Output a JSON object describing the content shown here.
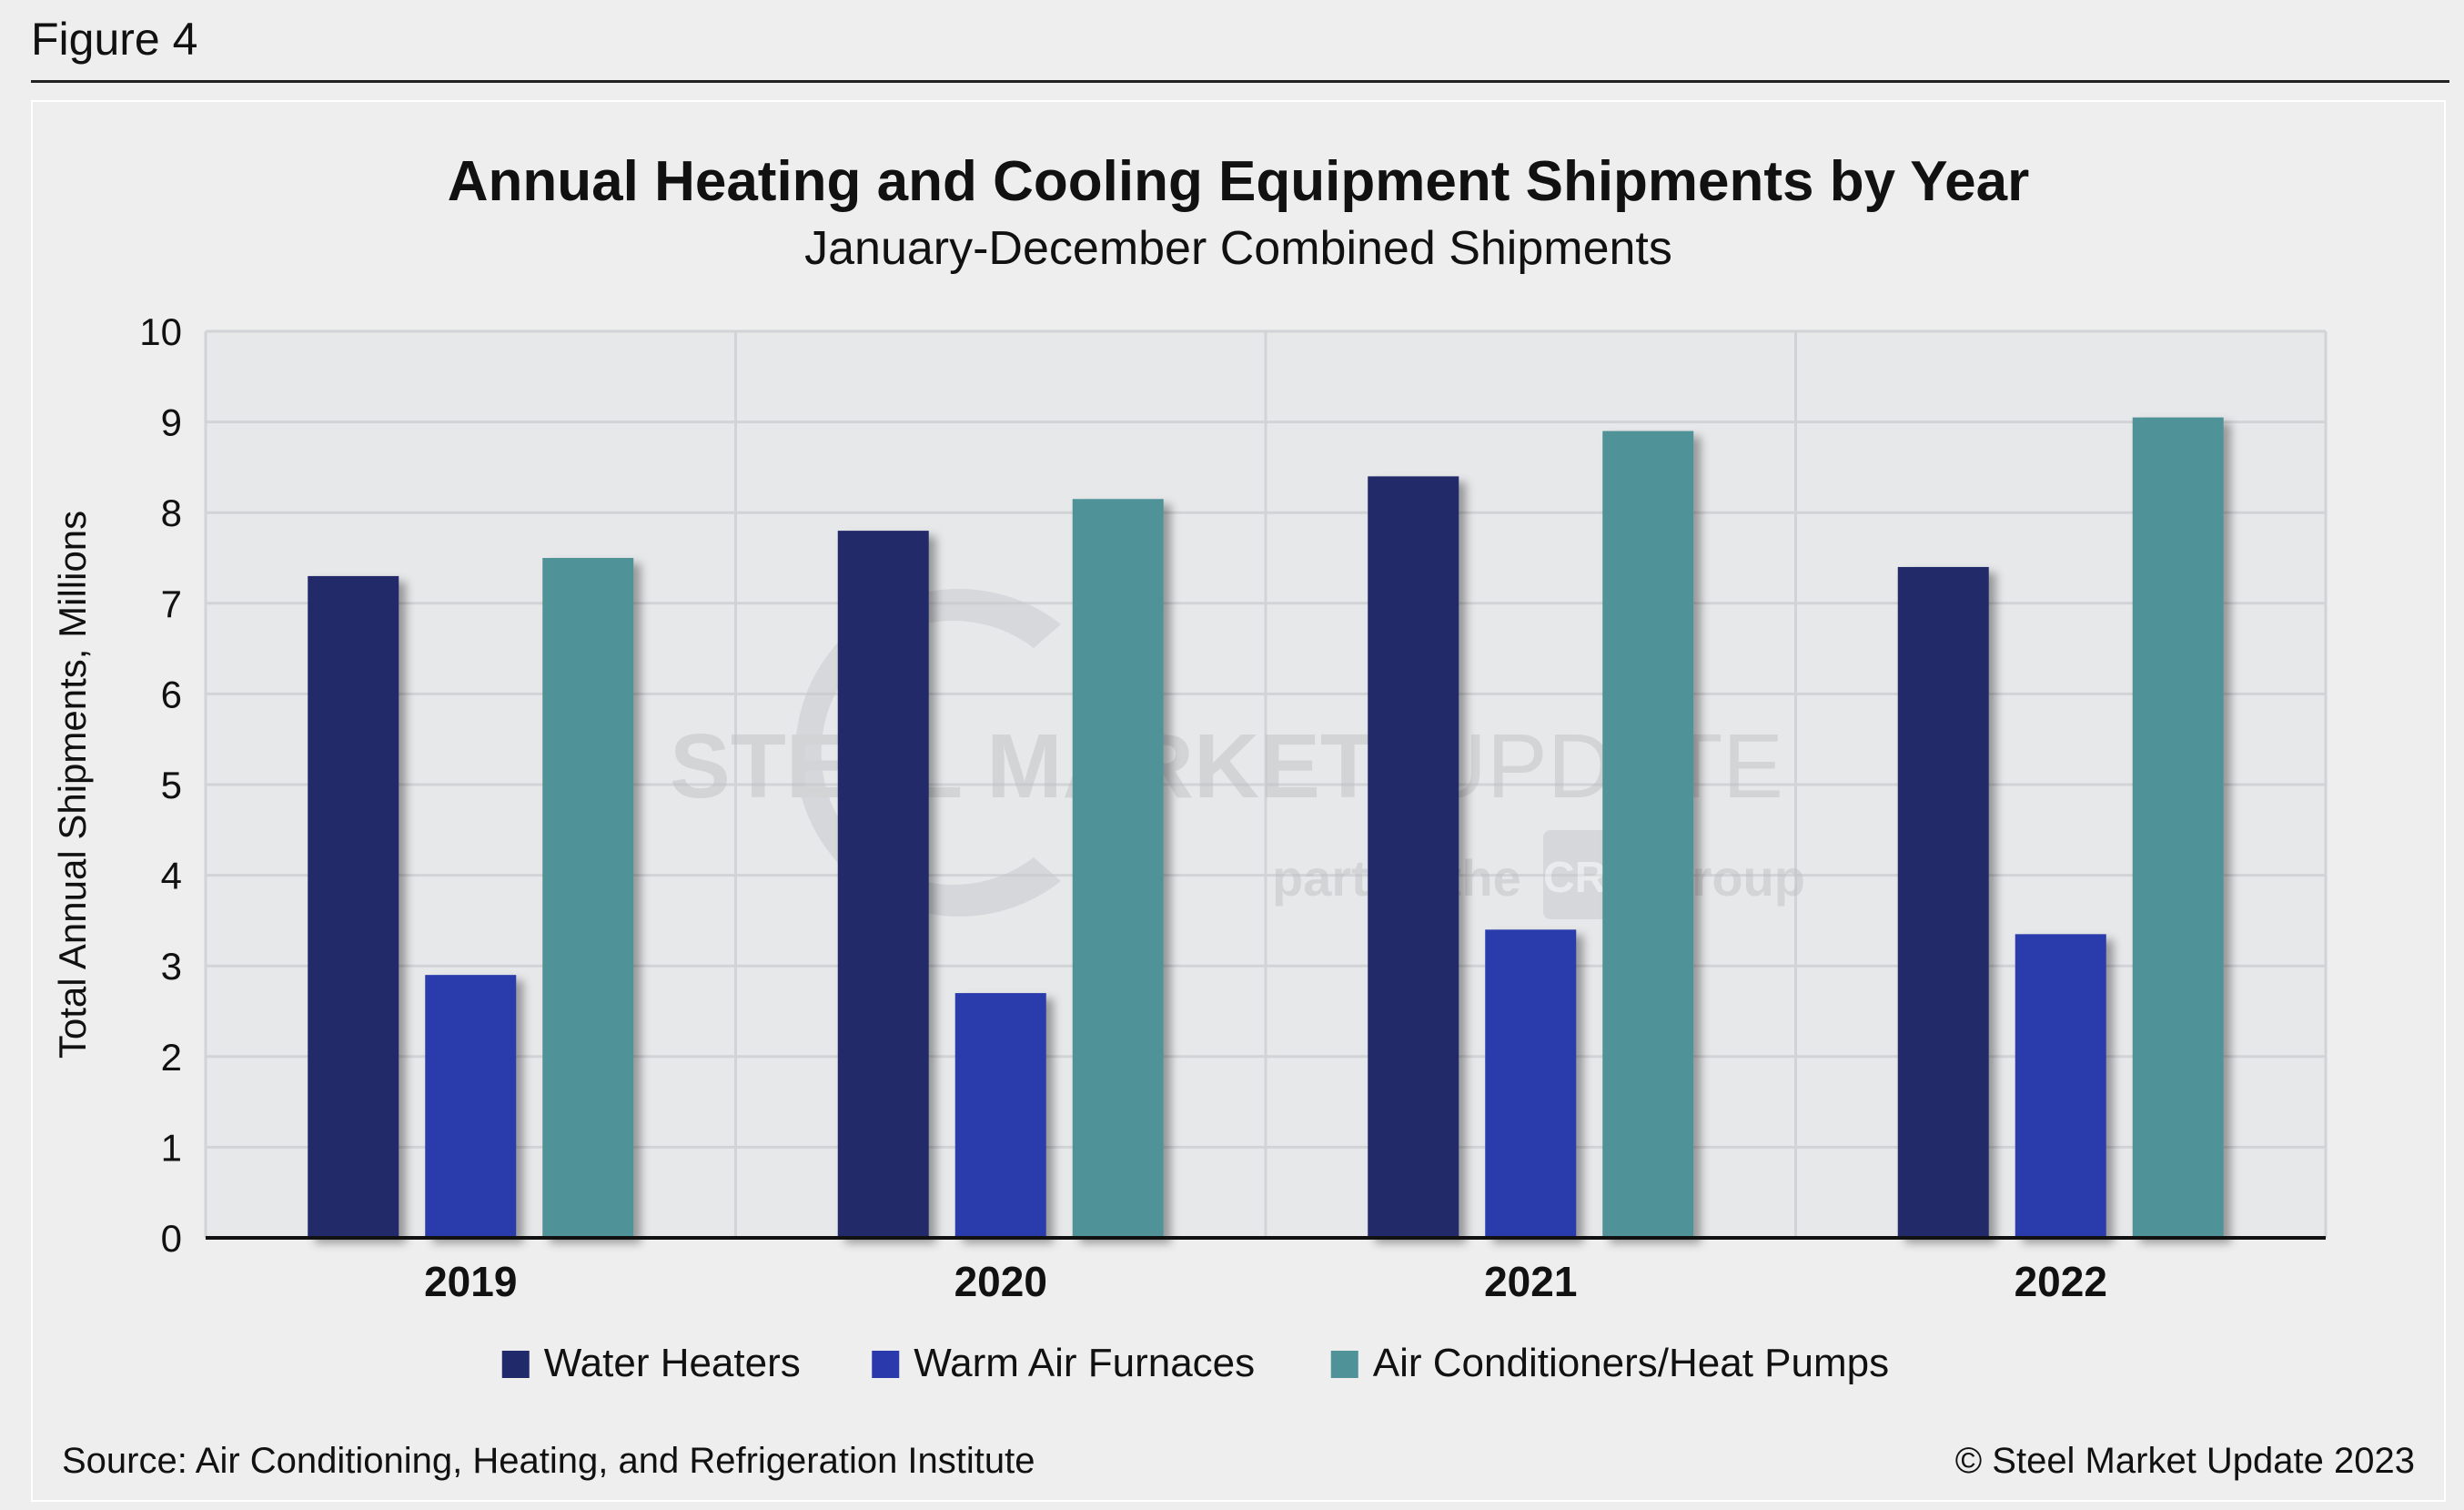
{
  "figure_label": "Figure 4",
  "source": "Source: Air Conditioning, Heating, and Refrigeration Institute",
  "copyright": "© Steel Market Update 2023",
  "watermark": {
    "line1_bold": "STEEL MARKET",
    "line1_light": "UPDATE",
    "line2_a": "part of the",
    "badge": "CRU",
    "line2_b": "Group"
  },
  "colors": {
    "water_heaters": "#202a6b",
    "warm_air_furnaces": "#2a3aac",
    "ac_heat_pumps": "#4f9297",
    "plot_bg": "#e7e8ea",
    "gridline": "#d2d3d6"
  },
  "chart_data": {
    "type": "bar",
    "title": "Annual Heating and Cooling Equipment Shipments by Year",
    "subtitle": "January-December Combined Shipments",
    "xlabel": "",
    "ylabel": "Total Annual Shipments, Millions",
    "ylim": [
      0,
      10
    ],
    "yticks": [
      0,
      1,
      2,
      3,
      4,
      5,
      6,
      7,
      8,
      9,
      10
    ],
    "grid": true,
    "legend_position": "bottom",
    "categories": [
      "2019",
      "2020",
      "2021",
      "2022"
    ],
    "series": [
      {
        "name": "Water Heaters",
        "color_key": "water_heaters",
        "values": [
          7.3,
          7.8,
          8.4,
          7.4
        ]
      },
      {
        "name": "Warm Air Furnaces",
        "color_key": "warm_air_furnaces",
        "values": [
          2.9,
          2.7,
          3.4,
          3.35
        ]
      },
      {
        "name": "Air Conditioners/Heat Pumps",
        "color_key": "ac_heat_pumps",
        "values": [
          7.5,
          8.15,
          8.9,
          9.05
        ]
      }
    ]
  }
}
